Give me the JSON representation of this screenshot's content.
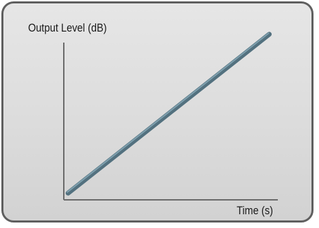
{
  "chart_data": {
    "type": "line",
    "title": "",
    "xlabel": "Time (s)",
    "ylabel": "Output Level (dB)",
    "grid": false,
    "series": [
      {
        "x": [
          0.02,
          0.96
        ],
        "y": [
          0.04,
          0.98
        ]
      }
    ],
    "colors": {
      "line": "#53717f",
      "line_highlight": "#7fa0ae",
      "axis": "#6a6a6a",
      "panel_border": "#5f5f5f",
      "panel_fill": "#e0e0e0"
    }
  }
}
